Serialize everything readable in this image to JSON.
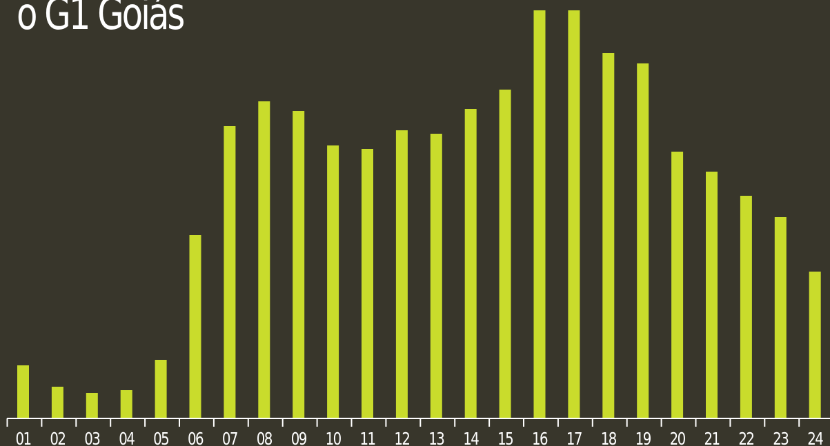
{
  "chart_data": {
    "type": "bar",
    "title": "o G1 Goiás",
    "categories": [
      "01",
      "02",
      "03",
      "04",
      "05",
      "06",
      "07",
      "08",
      "09",
      "10",
      "11",
      "12",
      "13",
      "14",
      "15",
      "16",
      "17",
      "18",
      "19",
      "20",
      "21",
      "22",
      "23",
      "24"
    ],
    "values": [
      76,
      45,
      36,
      40,
      84,
      265,
      423,
      459,
      445,
      395,
      390,
      417,
      412,
      448,
      476,
      591,
      591,
      529,
      514,
      386,
      357,
      322,
      291,
      212
    ],
    "ylim": [
      0,
      600
    ],
    "xlabel": "",
    "ylabel": "",
    "grid": false,
    "legend": "none",
    "bar_color": "#c9dc2c",
    "axis_color": "#ffffff",
    "background": "#38362b"
  }
}
